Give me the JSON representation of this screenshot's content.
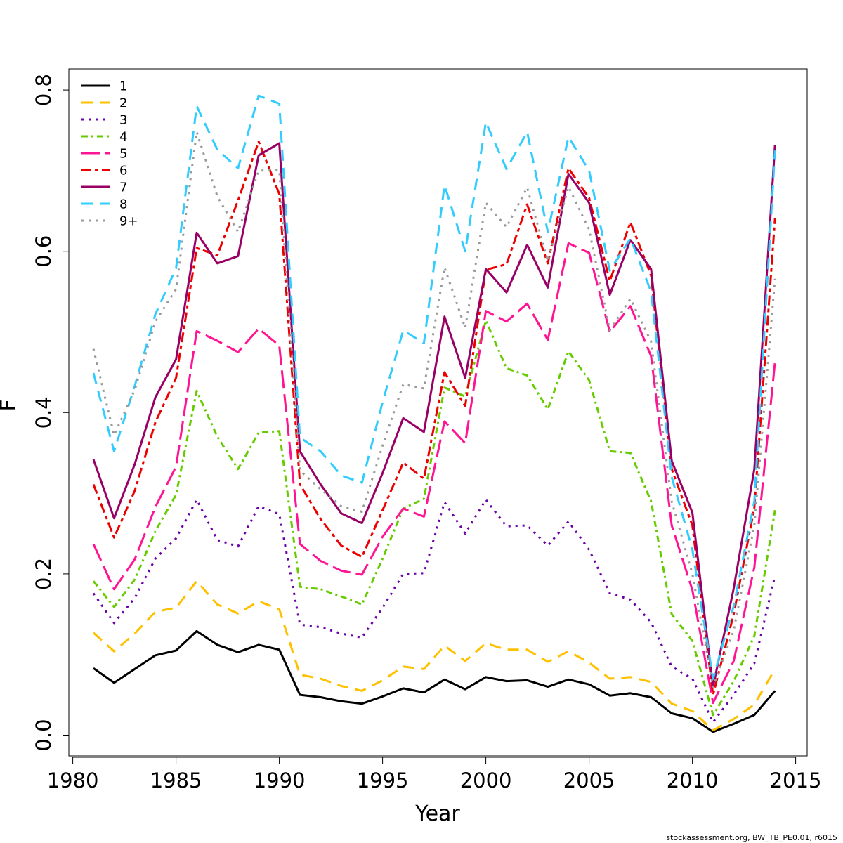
{
  "chart_data": {
    "type": "line",
    "xlabel": "Year",
    "ylabel": "F",
    "xlim": [
      1980,
      2015
    ],
    "ylim": [
      -0.02,
      0.825
    ],
    "xticks": [
      1980,
      1985,
      1990,
      1995,
      2000,
      2005,
      2010,
      2015
    ],
    "yticks": [
      0.0,
      0.2,
      0.4,
      0.6,
      0.8
    ],
    "ytick_labels": [
      "0.0",
      "0.2",
      "0.4",
      "0.6",
      "0.8"
    ],
    "grid": false,
    "legend": "top-left",
    "footnote": "stockassessment.org, BW_TB_PE0.01, r6015",
    "x": [
      1981,
      1982,
      1983,
      1984,
      1985,
      1986,
      1987,
      1988,
      1989,
      1990,
      1991,
      1992,
      1993,
      1994,
      1995,
      1996,
      1997,
      1998,
      1999,
      2000,
      2001,
      2002,
      2003,
      2004,
      2005,
      2006,
      2007,
      2008,
      2009,
      2010,
      2011,
      2012,
      2013,
      2014
    ],
    "series": [
      {
        "name": "1",
        "color": "#000000",
        "dash": "",
        "width": 3,
        "values": [
          0.083,
          0.065,
          0.082,
          0.099,
          0.105,
          0.129,
          0.112,
          0.103,
          0.112,
          0.106,
          0.05,
          0.047,
          0.042,
          0.039,
          0.048,
          0.058,
          0.053,
          0.069,
          0.057,
          0.072,
          0.067,
          0.068,
          0.06,
          0.069,
          0.063,
          0.049,
          0.052,
          0.047,
          0.027,
          0.021,
          0.004,
          0.014,
          0.025,
          0.055
        ]
      },
      {
        "name": "2",
        "color": "#FFC000",
        "dash": "16,10",
        "width": 3,
        "values": [
          0.127,
          0.104,
          0.126,
          0.153,
          0.158,
          0.191,
          0.162,
          0.151,
          0.166,
          0.156,
          0.075,
          0.07,
          0.061,
          0.055,
          0.068,
          0.085,
          0.082,
          0.111,
          0.092,
          0.114,
          0.106,
          0.106,
          0.091,
          0.104,
          0.09,
          0.07,
          0.072,
          0.066,
          0.039,
          0.03,
          0.006,
          0.02,
          0.038,
          0.082
        ]
      },
      {
        "name": "3",
        "color": "#6A00A8",
        "dash": "3,7",
        "width": 3,
        "values": [
          0.176,
          0.139,
          0.17,
          0.219,
          0.244,
          0.292,
          0.242,
          0.234,
          0.284,
          0.274,
          0.137,
          0.134,
          0.126,
          0.121,
          0.158,
          0.2,
          0.201,
          0.289,
          0.25,
          0.292,
          0.259,
          0.26,
          0.235,
          0.265,
          0.23,
          0.176,
          0.168,
          0.14,
          0.085,
          0.07,
          0.016,
          0.05,
          0.089,
          0.198
        ]
      },
      {
        "name": "4",
        "color": "#66CC00",
        "dash": "9,5,3,5",
        "width": 3,
        "values": [
          0.191,
          0.159,
          0.193,
          0.253,
          0.298,
          0.427,
          0.37,
          0.33,
          0.375,
          0.377,
          0.184,
          0.181,
          0.172,
          0.162,
          0.219,
          0.281,
          0.293,
          0.431,
          0.42,
          0.514,
          0.455,
          0.446,
          0.404,
          0.476,
          0.44,
          0.352,
          0.35,
          0.29,
          0.15,
          0.117,
          0.025,
          0.067,
          0.123,
          0.279
        ]
      },
      {
        "name": "5",
        "color": "#FF1493",
        "dash": "26,8",
        "width": 3,
        "values": [
          0.237,
          0.181,
          0.218,
          0.283,
          0.333,
          0.501,
          0.489,
          0.475,
          0.504,
          0.483,
          0.237,
          0.216,
          0.204,
          0.199,
          0.246,
          0.281,
          0.271,
          0.389,
          0.362,
          0.526,
          0.513,
          0.535,
          0.49,
          0.61,
          0.598,
          0.5,
          0.532,
          0.47,
          0.26,
          0.18,
          0.04,
          0.092,
          0.208,
          0.463
        ]
      },
      {
        "name": "6",
        "color": "#EE0000",
        "dash": "14,5,5,5",
        "width": 3,
        "values": [
          0.311,
          0.245,
          0.303,
          0.388,
          0.443,
          0.604,
          0.595,
          0.663,
          0.736,
          0.671,
          0.311,
          0.268,
          0.235,
          0.221,
          0.279,
          0.338,
          0.318,
          0.45,
          0.408,
          0.577,
          0.584,
          0.658,
          0.585,
          0.703,
          0.666,
          0.563,
          0.636,
          0.57,
          0.33,
          0.26,
          0.05,
          0.15,
          0.282,
          0.641
        ]
      },
      {
        "name": "7",
        "color": "#990066",
        "dash": "",
        "width": 3,
        "values": [
          0.342,
          0.269,
          0.336,
          0.419,
          0.466,
          0.623,
          0.585,
          0.594,
          0.719,
          0.734,
          0.352,
          0.311,
          0.275,
          0.263,
          0.325,
          0.393,
          0.376,
          0.519,
          0.443,
          0.578,
          0.549,
          0.608,
          0.555,
          0.696,
          0.66,
          0.546,
          0.614,
          0.578,
          0.34,
          0.276,
          0.06,
          0.182,
          0.33,
          0.732
        ]
      },
      {
        "name": "8",
        "color": "#33CCFF",
        "dash": "16,10",
        "width": 3,
        "values": [
          0.449,
          0.352,
          0.433,
          0.522,
          0.579,
          0.78,
          0.726,
          0.703,
          0.793,
          0.783,
          0.369,
          0.352,
          0.322,
          0.313,
          0.413,
          0.502,
          0.486,
          0.682,
          0.6,
          0.76,
          0.702,
          0.748,
          0.624,
          0.742,
          0.7,
          0.576,
          0.616,
          0.55,
          0.32,
          0.23,
          0.07,
          0.16,
          0.29,
          0.725
        ]
      },
      {
        "name": "9+",
        "color": "#999999",
        "dash": "3,7",
        "width": 3,
        "values": [
          0.479,
          0.372,
          0.428,
          0.513,
          0.553,
          0.748,
          0.668,
          0.624,
          0.7,
          0.701,
          0.328,
          0.305,
          0.284,
          0.277,
          0.359,
          0.435,
          0.43,
          0.58,
          0.505,
          0.66,
          0.63,
          0.679,
          0.588,
          0.68,
          0.627,
          0.502,
          0.541,
          0.488,
          0.29,
          0.2,
          0.06,
          0.13,
          0.26,
          0.566
        ]
      }
    ]
  }
}
